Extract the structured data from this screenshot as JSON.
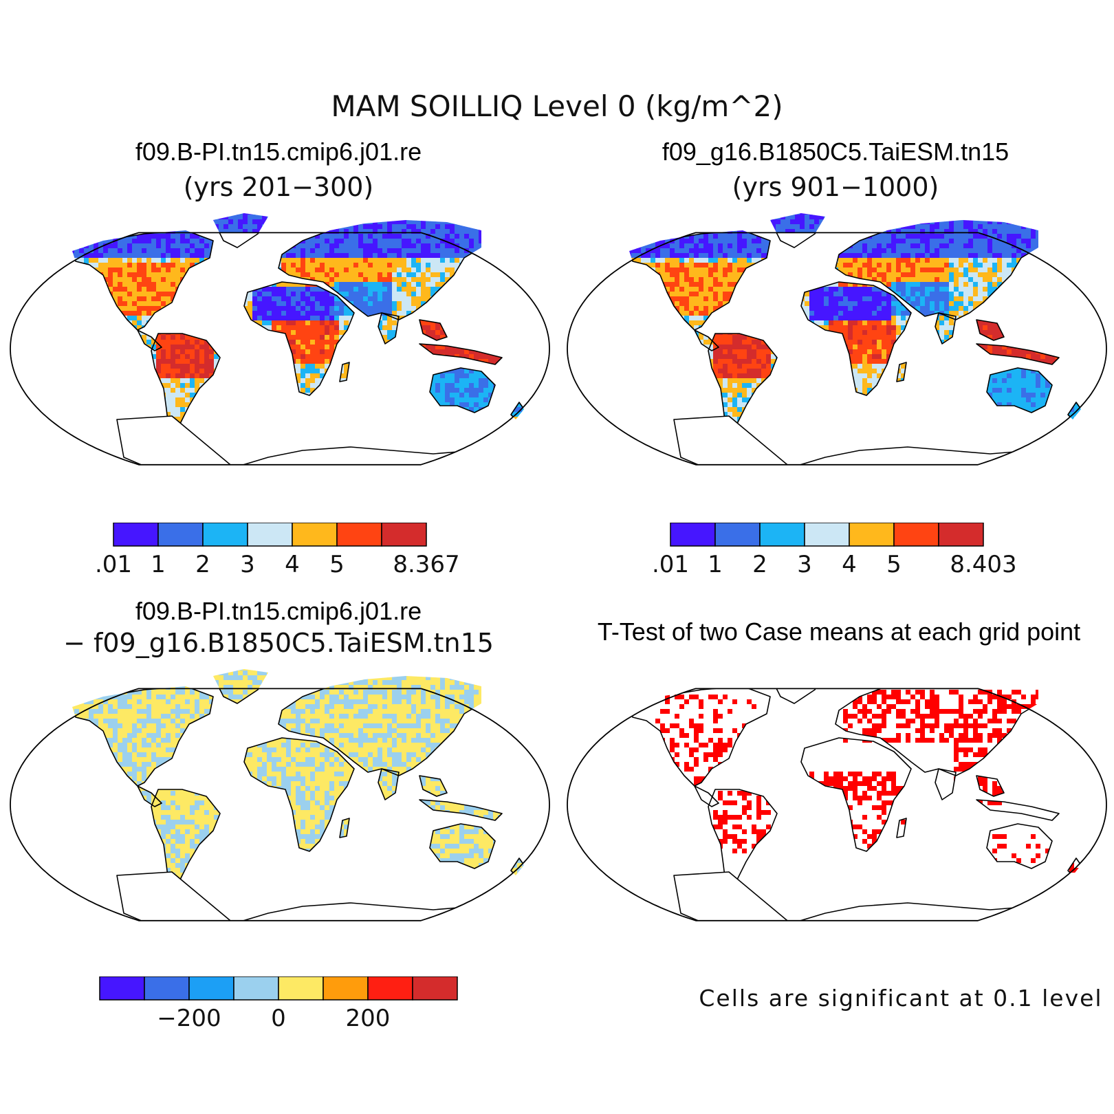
{
  "title": "MAM SOILLIQ Level 0 (kg/m^2)",
  "panels": [
    {
      "id": "case1",
      "title_line1": "f09.B-PI.tn15.cmip6.j01.re",
      "title_line2": "(yrs 201−300)",
      "colorbar": {
        "colors": [
          "#4616ff",
          "#3a6fe8",
          "#1cb4f5",
          "#cce7f5",
          "#ffb81c",
          "#ff4412",
          "#d42c2c"
        ],
        "labels": [
          ".01",
          "1",
          "2",
          "3",
          "4",
          "5",
          "8.367"
        ]
      }
    },
    {
      "id": "case2",
      "title_line1": "f09_g16.B1850C5.TaiESM.tn15",
      "title_line2": "(yrs 901−1000)",
      "colorbar": {
        "colors": [
          "#4616ff",
          "#3a6fe8",
          "#1cb4f5",
          "#cce7f5",
          "#ffb81c",
          "#ff4412",
          "#d42c2c"
        ],
        "labels": [
          ".01",
          "1",
          "2",
          "3",
          "4",
          "5",
          "8.403"
        ]
      }
    },
    {
      "id": "difference",
      "title_line1": "f09.B-PI.tn15.cmip6.j01.re",
      "title_line2": "− f09_g16.B1850C5.TaiESM.tn15",
      "colorbar": {
        "colors": [
          "#4616ff",
          "#3a6fe8",
          "#1c9ff5",
          "#9bd0ee",
          "#fde964",
          "#ff9c0c",
          "#ff1f12",
          "#d42c2c"
        ],
        "labels": [
          "−200",
          "0",
          "200"
        ]
      }
    },
    {
      "id": "ttest",
      "title_line1": "T-Test of two Case means at each grid point",
      "note": "Cells are significant at 0.1 level",
      "significance_color": "#ff0000"
    }
  ]
}
